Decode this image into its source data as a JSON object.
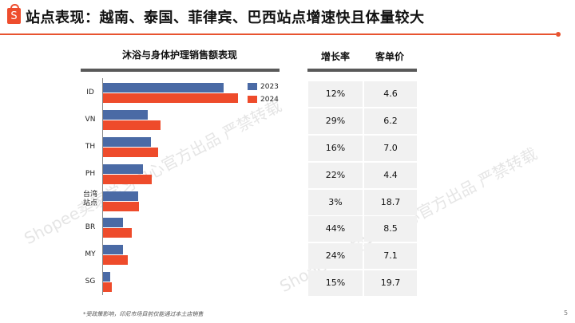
{
  "header": {
    "logo_letter": "S",
    "title": "站点表现：越南、泰国、菲律宾、巴西站点增速快且体量较大",
    "accent": "#e8532f"
  },
  "watermark": [
    "Shopee卖家学习中心官方出品 严禁转载",
    "Shopee卖家学习中心官方出品 严禁转载"
  ],
  "chart_data": {
    "type": "bar",
    "orientation": "horizontal",
    "title": "沐浴与身体护理销售额表现",
    "categories": [
      "ID",
      "VN",
      "TH",
      "PH",
      "台湾站点",
      "BR",
      "MY",
      "SG"
    ],
    "series": [
      {
        "name": "2023",
        "color": "#4a6aa5",
        "values": [
          151,
          56,
          60,
          50,
          44,
          25,
          25,
          9
        ]
      },
      {
        "name": "2024",
        "color": "#ee4b2b",
        "values": [
          169,
          72,
          69,
          61,
          45,
          36,
          31,
          11
        ]
      }
    ],
    "legend_position": "top-right",
    "grid": false,
    "xlabel": "",
    "ylabel": ""
  },
  "chart": {
    "title": "沐浴与身体护理销售额表现",
    "labels": [
      "ID",
      "VN",
      "TH",
      "PH",
      "台湾\n站点",
      "BR",
      "MY",
      "SG"
    ],
    "legend": [
      "2023",
      "2024"
    ]
  },
  "table": {
    "headers": [
      "增长率",
      "客单价"
    ],
    "rows": [
      [
        "12%",
        "4.6"
      ],
      [
        "29%",
        "6.2"
      ],
      [
        "16%",
        "7.0"
      ],
      [
        "22%",
        "4.4"
      ],
      [
        "3%",
        "18.7"
      ],
      [
        "44%",
        "8.5"
      ],
      [
        "24%",
        "7.1"
      ],
      [
        "15%",
        "19.7"
      ]
    ]
  },
  "footer": {
    "note": "*受政策影响，印尼市场目前仅能通过本土店销售",
    "page": "5"
  }
}
